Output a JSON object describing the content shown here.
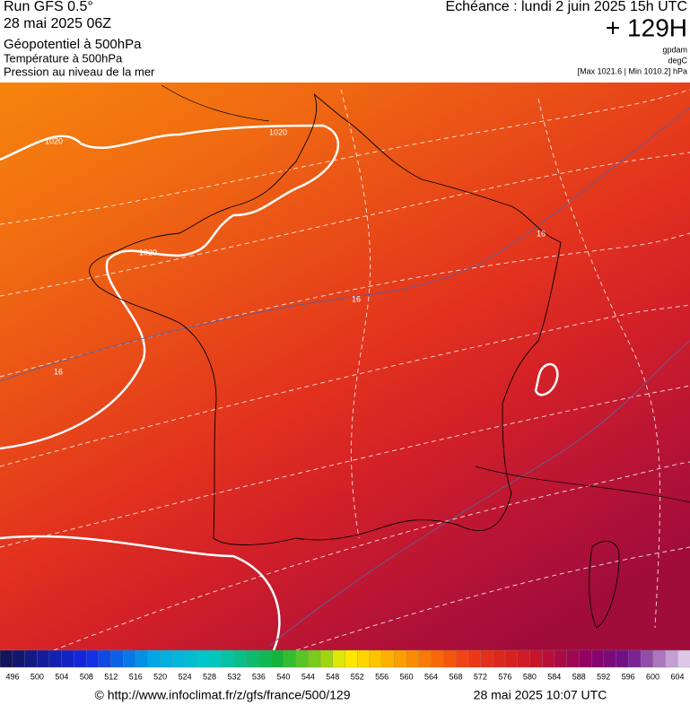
{
  "header": {
    "run": "Run GFS 0.5°",
    "run_date": "28 mai 2025 06Z",
    "field_1": "Géopotentiel à 500hPa",
    "field_2": "Température à 500hPa",
    "field_3": "Pression au niveau de la mer",
    "valid_time": "Echéance : lundi 2 juin 2025 15h UTC",
    "lead": "+ 129H",
    "unit_1": "gpdam",
    "unit_2": "degC",
    "pressure_range": "[Max 1021.6 | Min 1010.2] hPa"
  },
  "map": {
    "contour_labels": [
      "1020",
      "1020",
      "1020",
      "16",
      "16",
      "16"
    ]
  },
  "colorbar": {
    "labels": [
      496,
      500,
      504,
      508,
      512,
      516,
      520,
      524,
      528,
      532,
      536,
      540,
      544,
      548,
      552,
      556,
      560,
      564,
      568,
      572,
      576,
      580,
      584,
      588,
      592,
      596,
      600,
      604
    ]
  },
  "footer": {
    "source": "© http://www.infoclimat.fr/z/gfs/france/500/129",
    "generated": "28 mai 2025 10:07 UTC"
  }
}
